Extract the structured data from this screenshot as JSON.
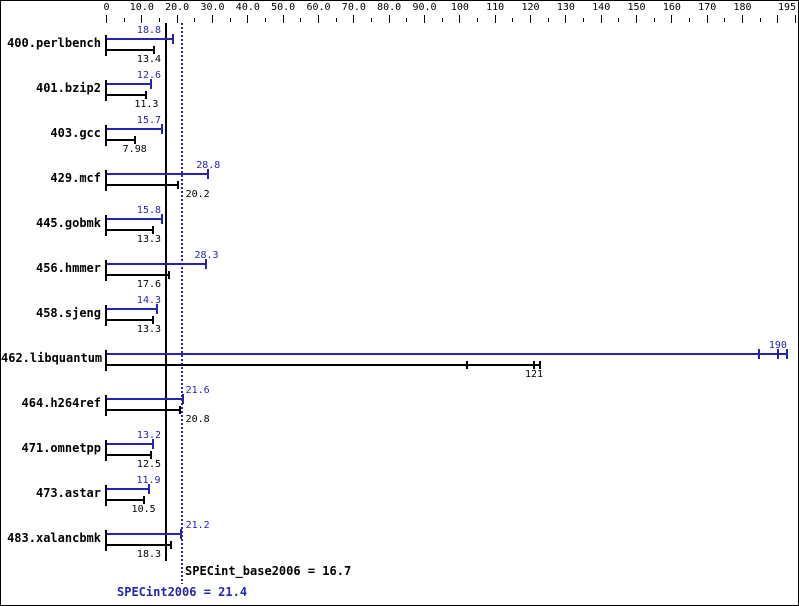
{
  "colors": {
    "peak": "#2525b2",
    "base": "#000000",
    "background": "#ffffff"
  },
  "chart_data": {
    "type": "bar",
    "orientation": "horizontal",
    "axis": {
      "min": 0,
      "max": 195,
      "position": "top",
      "major_ticks": [
        0,
        10,
        20,
        30,
        40,
        50,
        60,
        70,
        80,
        90,
        100,
        110,
        120,
        130,
        140,
        150,
        160,
        170,
        180,
        190,
        195
      ],
      "minor_ticks": [
        5,
        15,
        25,
        35,
        45,
        55,
        65,
        75,
        85,
        95,
        105,
        115,
        125,
        135,
        145,
        155,
        165,
        175,
        185
      ],
      "tick_labels": [
        {
          "value": 0,
          "label": "0"
        },
        {
          "value": 10,
          "label": "10.0"
        },
        {
          "value": 20,
          "label": "20.0"
        },
        {
          "value": 30,
          "label": "30.0"
        },
        {
          "value": 40,
          "label": "40.0"
        },
        {
          "value": 50,
          "label": "50.0"
        },
        {
          "value": 60,
          "label": "60.0"
        },
        {
          "value": 70,
          "label": "70.0"
        },
        {
          "value": 80,
          "label": "80.0"
        },
        {
          "value": 90,
          "label": "90.0"
        },
        {
          "value": 100,
          "label": "100"
        },
        {
          "value": 110,
          "label": "110"
        },
        {
          "value": 120,
          "label": "120"
        },
        {
          "value": 130,
          "label": "130"
        },
        {
          "value": 140,
          "label": "140"
        },
        {
          "value": 150,
          "label": "150"
        },
        {
          "value": 160,
          "label": "160"
        },
        {
          "value": 170,
          "label": "170"
        },
        {
          "value": 180,
          "label": "180"
        },
        {
          "value": 195,
          "label": "195"
        }
      ]
    },
    "series": [
      {
        "id": "peak",
        "name": "SPECint2006",
        "color": "#2525b2"
      },
      {
        "id": "base",
        "name": "SPECint_base2006",
        "color": "#000000"
      }
    ],
    "benchmarks": [
      {
        "name": "400.perlbench",
        "peak": {
          "value": 18.8,
          "label": "18.8",
          "runs": [
            18.8
          ]
        },
        "base": {
          "value": 13.4,
          "label": "13.4",
          "runs": [
            13.4
          ]
        }
      },
      {
        "name": "401.bzip2",
        "peak": {
          "value": 12.6,
          "label": "12.6",
          "runs": [
            12.6
          ]
        },
        "base": {
          "value": 11.3,
          "label": "11.3",
          "runs": [
            11.3
          ]
        }
      },
      {
        "name": "403.gcc",
        "peak": {
          "value": 15.7,
          "label": "15.7",
          "runs": [
            15.7
          ]
        },
        "base": {
          "value": 7.98,
          "label": "7.98",
          "runs": [
            7.98
          ]
        }
      },
      {
        "name": "429.mcf",
        "peak": {
          "value": 28.8,
          "label": "28.8",
          "runs": [
            28.8
          ]
        },
        "base": {
          "value": 20.2,
          "label": "20.2",
          "runs": [
            20.2
          ]
        }
      },
      {
        "name": "445.gobmk",
        "peak": {
          "value": 15.8,
          "label": "15.8",
          "runs": [
            15.8
          ]
        },
        "base": {
          "value": 13.3,
          "label": "13.3",
          "runs": [
            13.3
          ]
        }
      },
      {
        "name": "456.hmmer",
        "peak": {
          "value": 28.3,
          "label": "28.3",
          "runs": [
            28.3
          ]
        },
        "base": {
          "value": 17.6,
          "label": "17.6",
          "runs": [
            17.6
          ]
        }
      },
      {
        "name": "458.sjeng",
        "peak": {
          "value": 14.3,
          "label": "14.3",
          "runs": [
            14.3
          ]
        },
        "base": {
          "value": 13.3,
          "label": "13.3",
          "runs": [
            13.3
          ]
        }
      },
      {
        "name": "462.libquantum",
        "peak": {
          "value": 190,
          "label": "190",
          "runs": [
            184.7,
            190,
            192.7
          ]
        },
        "base": {
          "value": 121,
          "label": "121",
          "runs": [
            102,
            121,
            122.7
          ]
        }
      },
      {
        "name": "464.h264ref",
        "peak": {
          "value": 21.6,
          "label": "21.6",
          "runs": [
            21.6
          ]
        },
        "base": {
          "value": 20.8,
          "label": "20.8",
          "runs": [
            20.8
          ]
        }
      },
      {
        "name": "471.omnetpp",
        "peak": {
          "value": 13.2,
          "label": "13.2",
          "runs": [
            13.2
          ]
        },
        "base": {
          "value": 12.5,
          "label": "12.5",
          "runs": [
            12.5
          ]
        }
      },
      {
        "name": "473.astar",
        "peak": {
          "value": 11.9,
          "label": "11.9",
          "runs": [
            11.9
          ]
        },
        "base": {
          "value": 10.5,
          "label": "10.5",
          "runs": [
            10.5
          ]
        }
      },
      {
        "name": "483.xalancbmk",
        "peak": {
          "value": 21.2,
          "label": "21.2",
          "runs": [
            21.2
          ]
        },
        "base": {
          "value": 18.3,
          "label": "18.3",
          "runs": [
            18.3
          ]
        }
      }
    ],
    "reference_lines": [
      {
        "id": "base_mean",
        "series": "base",
        "style": "solid",
        "color": "#000000",
        "value": 16.7,
        "label": "SPECint_base2006 = 16.7"
      },
      {
        "id": "peak_mean",
        "series": "peak",
        "style": "dotted",
        "color": "#2525b2",
        "value": 21.4,
        "label": "SPECint2006 = 21.4"
      }
    ]
  }
}
